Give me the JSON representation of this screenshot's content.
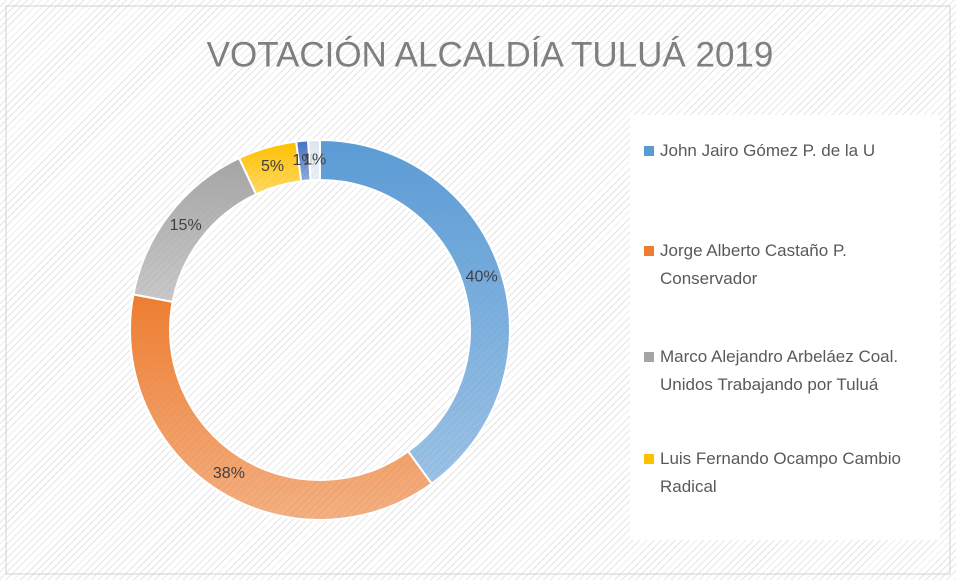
{
  "chart_data": {
    "type": "donut",
    "title": "VOTACIÓN ALCALDÍA TULUÁ 2019",
    "categories": [
      "John Jairo Gómez P. de la U",
      "Jorge Alberto Castaño P. Conservador",
      "Marco Alejandro Arbeláez Coal. Unidos Trabajando por Tuluá",
      "Luis Fernando Ocampo Cambio Radical",
      null,
      null
    ],
    "values": [
      40,
      38,
      15,
      5,
      1,
      1
    ],
    "value_labels": [
      "40%",
      "38%",
      "15%",
      "5%",
      "1%",
      "1%"
    ],
    "colors": [
      "#5b9bd5",
      "#ed7d31",
      "#a5a5a5",
      "#ffc000",
      "#4472c4",
      "#dce6f2"
    ],
    "legend": "right"
  }
}
